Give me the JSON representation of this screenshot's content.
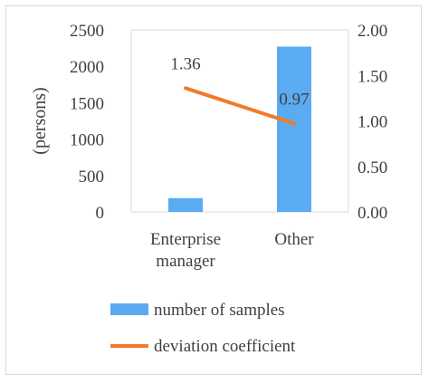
{
  "chart_data": {
    "type": "bar",
    "categories": [
      "Enterprise\nmanager",
      "Other"
    ],
    "series": [
      {
        "name": "number of samples",
        "type": "bar",
        "axis": "left",
        "values": [
          190,
          2270
        ],
        "color": "#5aabf2"
      },
      {
        "name": "deviation coefficient",
        "type": "line",
        "axis": "right",
        "values": [
          1.36,
          0.97
        ],
        "color": "#f4792a",
        "labels": [
          "1.36",
          "0.97"
        ]
      }
    ],
    "y_left": {
      "label": "(persons)",
      "ylim": [
        0,
        2500
      ],
      "ticks": [
        "0",
        "500",
        "1000",
        "1500",
        "2000",
        "2500"
      ]
    },
    "y_right": {
      "ylim": [
        0,
        2.0
      ],
      "ticks": [
        "0.00",
        "0.50",
        "1.00",
        "1.50",
        "2.00"
      ]
    },
    "grid": false,
    "legend_position": "bottom"
  }
}
